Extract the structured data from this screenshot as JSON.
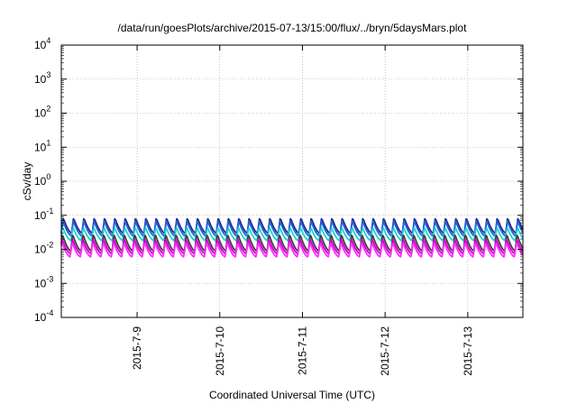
{
  "chart_data": {
    "type": "line",
    "title": "/data/run/goesPlots/archive/2015-07-13/15:00/flux/../bryn/5daysMars.plot",
    "xlabel": "Coordinated Universal Time (UTC)",
    "ylabel": "cSv/day",
    "yscale": "log",
    "ylim": [
      0.0001,
      10000
    ],
    "y_ticks": [
      {
        "base": "10",
        "exp": "4"
      },
      {
        "base": "10",
        "exp": "3"
      },
      {
        "base": "10",
        "exp": "2"
      },
      {
        "base": "10",
        "exp": "1"
      },
      {
        "base": "10",
        "exp": "0"
      },
      {
        "base": "10",
        "exp": "-1"
      },
      {
        "base": "10",
        "exp": "-2"
      },
      {
        "base": "10",
        "exp": "-3"
      },
      {
        "base": "10",
        "exp": "-4"
      }
    ],
    "x_ticks": [
      "2015-7-9",
      "2015-7-10",
      "2015-7-11",
      "2015-7-12",
      "2015-7-13"
    ],
    "xlim": [
      "2015-07-08 02:00",
      "2015-07-13 16:00"
    ],
    "grid": true,
    "oscillation_period_hours": 3,
    "series": [
      {
        "color": "#2a2a80",
        "peak": 0.085,
        "trough": 0.03
      },
      {
        "color": "#1e64e0",
        "peak": 0.07,
        "trough": 0.025
      },
      {
        "color": "#20d0d0",
        "peak": 0.045,
        "trough": 0.018
      },
      {
        "color": "#404040",
        "peak": 0.028,
        "trough": 0.009
      },
      {
        "color": "#d000d0",
        "peak": 0.02,
        "trough": 0.0075
      },
      {
        "color": "#ff30ff",
        "peak": 0.016,
        "trough": 0.006
      }
    ]
  }
}
